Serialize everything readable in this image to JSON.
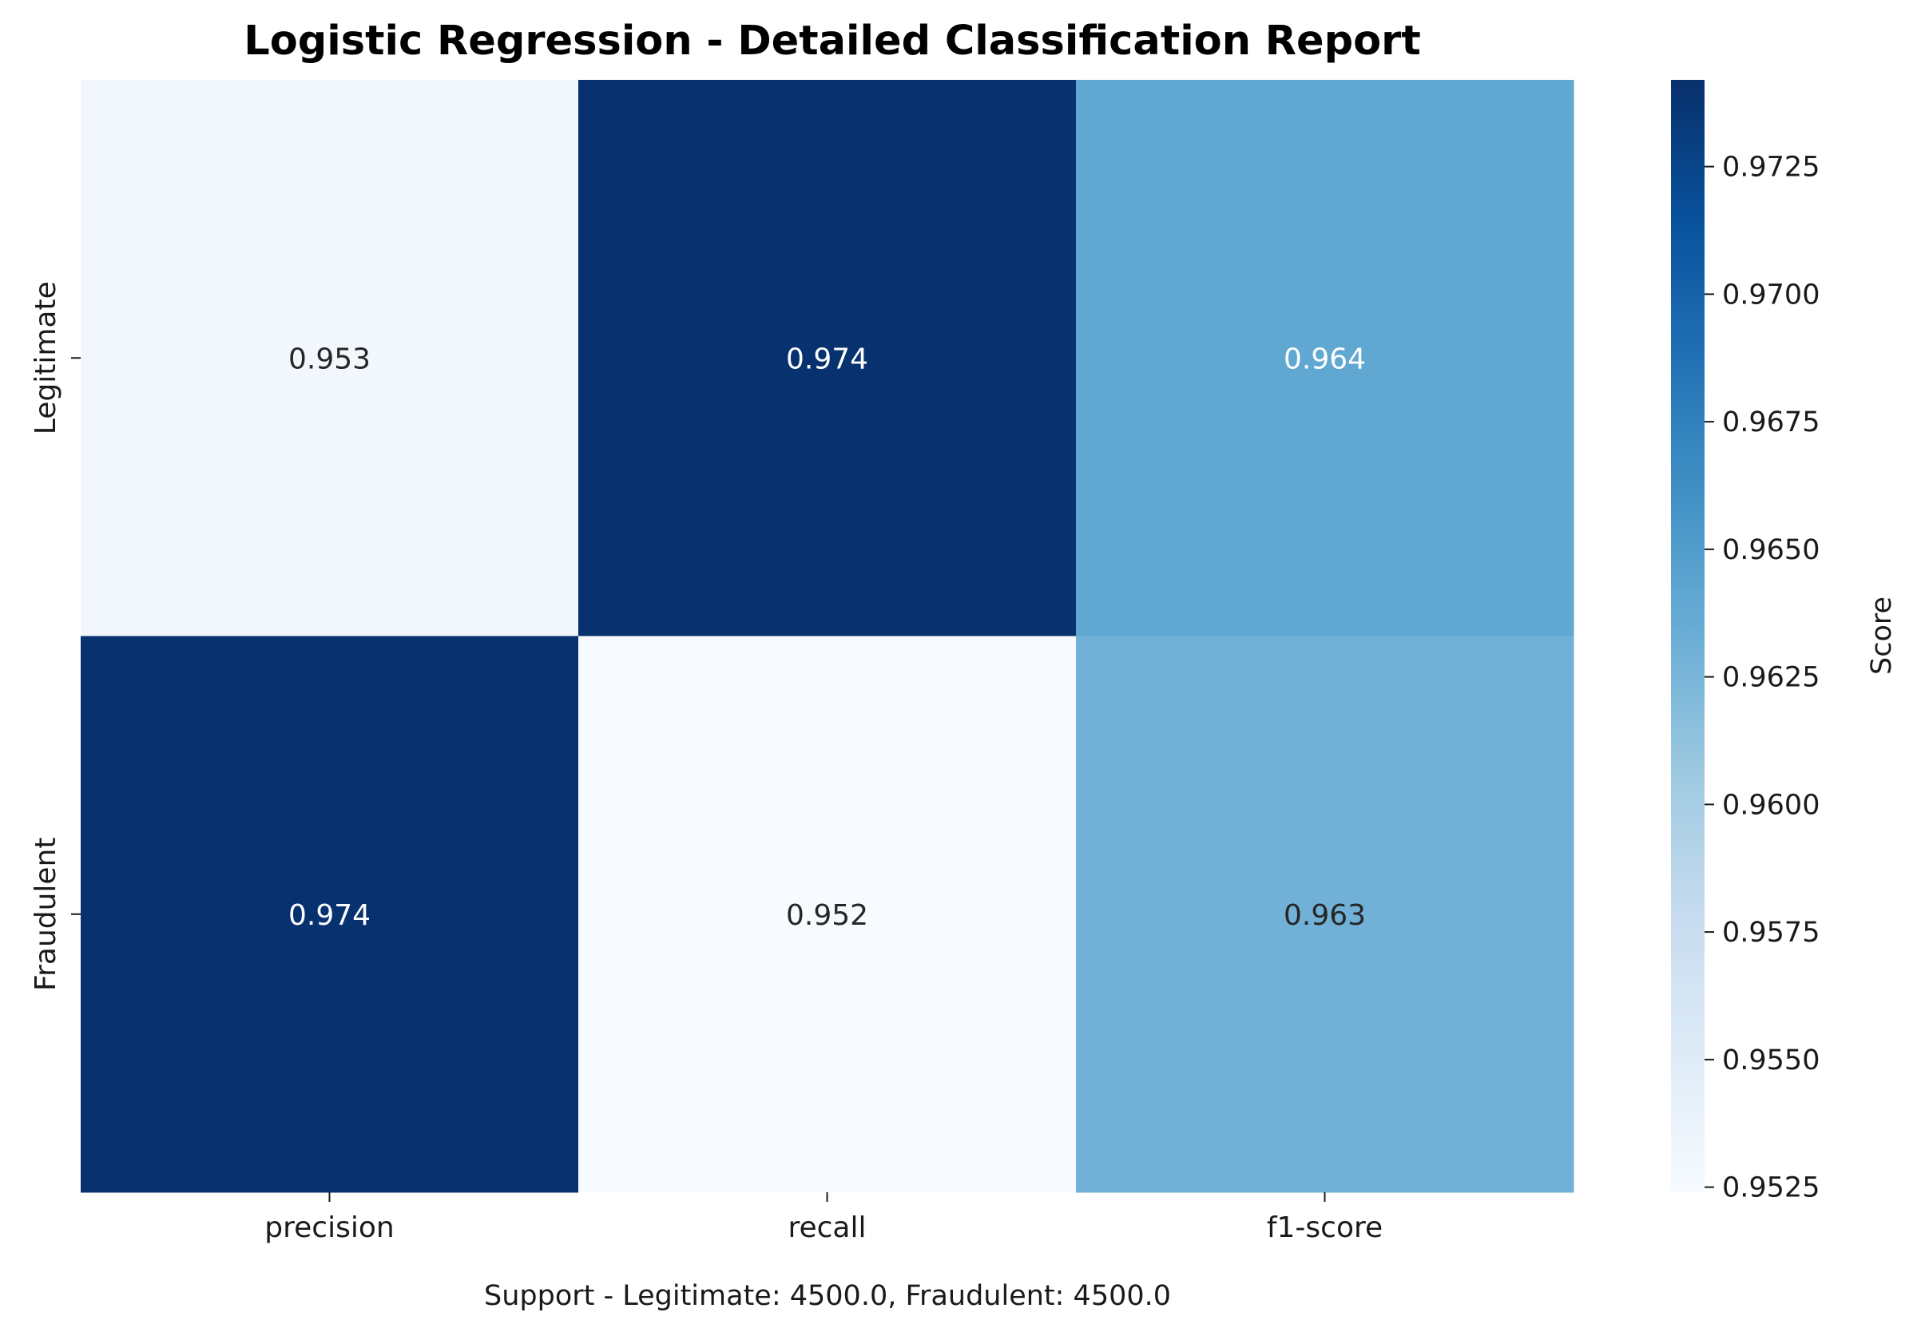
{
  "chart_data": {
    "type": "heatmap",
    "title": "Logistic Regression - Detailed Classification Report",
    "x_categories": [
      "precision",
      "recall",
      "f1-score"
    ],
    "y_categories": [
      "Legitimate",
      "Fraudulent"
    ],
    "values": [
      [
        0.953,
        0.974,
        0.964
      ],
      [
        0.974,
        0.952,
        0.963
      ]
    ],
    "cell_labels": [
      [
        "0.953",
        "0.974",
        "0.964"
      ],
      [
        "0.974",
        "0.952",
        "0.963"
      ]
    ],
    "colormap": "Blues",
    "colorbar": {
      "label": "Score",
      "vmin": 0.9524,
      "vmax": 0.9742,
      "ticks": [
        "0.9525",
        "0.9550",
        "0.9575",
        "0.9600",
        "0.9625",
        "0.9650",
        "0.9675",
        "0.9700",
        "0.9725"
      ]
    },
    "footnote": "Support - Legitimate: 4500.0, Fraudulent: 4500.0",
    "grid": false
  }
}
